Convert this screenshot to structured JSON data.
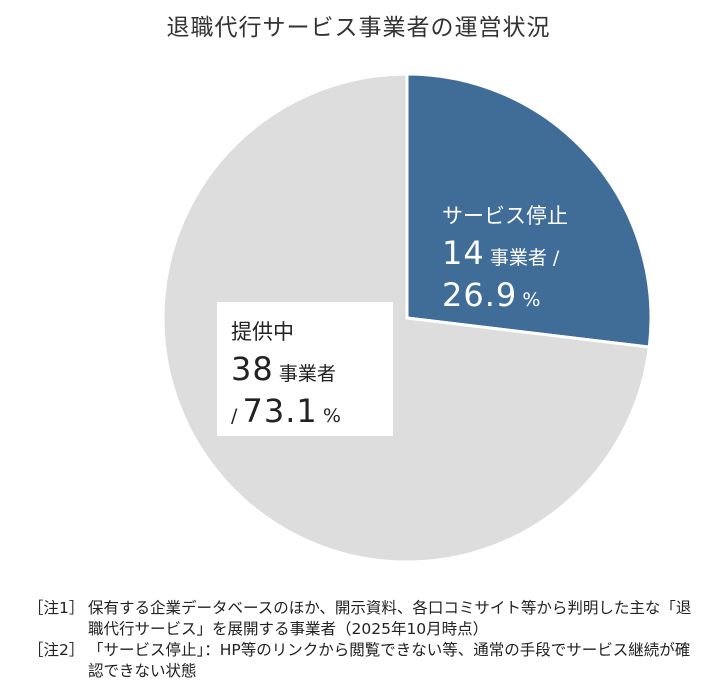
{
  "title": "退職代行サービス事業者の運営状況",
  "chart_data": {
    "type": "pie",
    "title": "退職代行サービス事業者の運営状況",
    "slices": [
      {
        "name": "サービス停止",
        "count": 14,
        "count_unit": "事業者",
        "percent": 26.9,
        "percent_unit": "%",
        "color": "#3f6d98"
      },
      {
        "name": "提供中",
        "count": 38,
        "count_unit": "事業者",
        "percent": 73.1,
        "percent_unit": "%",
        "color": "#dddddd"
      }
    ],
    "start_angle_deg": 0,
    "direction": "clockwise"
  },
  "labels": {
    "stopped": {
      "name": "サービス停止",
      "count": "14",
      "unit": "事業者 /",
      "percent": "26.9",
      "percent_unit": "%"
    },
    "active": {
      "name": "提供中",
      "count": "38",
      "unit": "事業者",
      "slash": "/",
      "percent": "73.1",
      "percent_unit": "%"
    }
  },
  "notes": [
    {
      "tag": "［注1］",
      "text": "保有する企業データベースのほか、開示資料、各口コミサイト等から判明した主な「退職代行サービス」を展開する事業者（2025年10月時点）"
    },
    {
      "tag": "［注2］",
      "text": "「サービス停止」：HP等のリンクから閲覧できない等、通常の手段でサービス継続が確認できない状態"
    }
  ]
}
